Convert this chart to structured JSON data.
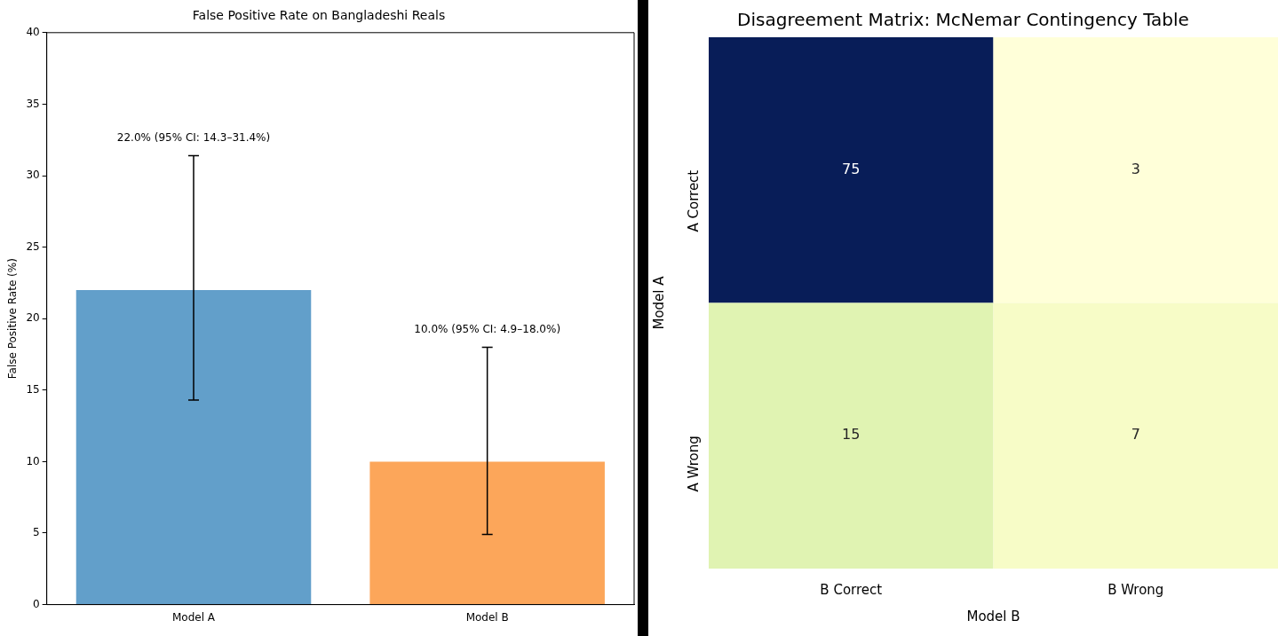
{
  "chart_data": [
    {
      "type": "bar",
      "title": "False Positive Rate on Bangladeshi Reals",
      "ylabel": "False Positive Rate (%)",
      "categories": [
        "Model A",
        "Model B"
      ],
      "values": [
        22.0,
        10.0
      ],
      "colors": [
        "#629fca",
        "#fca65a"
      ],
      "errors": [
        [
          14.3,
          31.4
        ],
        [
          4.9,
          18.0
        ]
      ],
      "annotations": [
        {
          "text": "22.0% (95% CI: 14.3–31.4%)",
          "x": "Model A",
          "y": 31.4
        },
        {
          "text": "10.0% (95% CI: 4.9–18.0%)",
          "x": "Model B",
          "y": 18.0
        }
      ],
      "ylim": [
        0,
        40
      ],
      "yticks": [
        0,
        5,
        10,
        15,
        20,
        25,
        30,
        35,
        40
      ],
      "grid": false,
      "legend": false
    },
    {
      "type": "heatmap",
      "title": "Disagreement Matrix: McNemar Contingency Table",
      "xlabel": "Model B",
      "ylabel": "Model A",
      "categories": [
        "B Correct",
        "B Wrong"
      ],
      "y_categories": [
        "A Correct",
        "A Wrong"
      ],
      "cells": [
        [
          75,
          3
        ],
        [
          15,
          7
        ]
      ],
      "data_labels": true,
      "legend": false
    }
  ]
}
